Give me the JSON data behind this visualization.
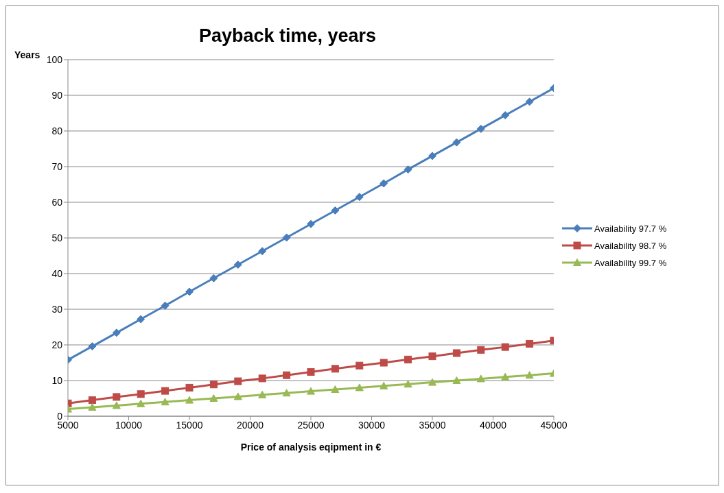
{
  "chart_data": {
    "type": "line",
    "title": "Payback time, years",
    "xlabel": "Price of analysis  eqipment in €",
    "ylabel": "Years",
    "x": [
      5000,
      7000,
      9000,
      11000,
      13000,
      15000,
      17000,
      19000,
      21000,
      23000,
      25000,
      27000,
      29000,
      31000,
      33000,
      35000,
      37000,
      39000,
      41000,
      43000,
      45000
    ],
    "series": [
      {
        "name": "Availability 97.7 %",
        "color": "#4a7ebb",
        "marker": "diamond",
        "values": [
          15.8,
          19.6,
          23.4,
          27.2,
          31.0,
          34.9,
          38.7,
          42.5,
          46.3,
          50.1,
          53.9,
          57.7,
          61.5,
          65.3,
          69.2,
          73.0,
          76.8,
          80.6,
          84.4,
          88.2,
          92.0
        ]
      },
      {
        "name": "Availability 98.7 %",
        "color": "#be4b48",
        "marker": "square",
        "values": [
          3.6,
          4.5,
          5.4,
          6.2,
          7.1,
          8.0,
          8.9,
          9.8,
          10.6,
          11.5,
          12.4,
          13.3,
          14.2,
          15.0,
          15.9,
          16.8,
          17.7,
          18.6,
          19.4,
          20.3,
          21.2
        ]
      },
      {
        "name": "Availability 99.7 %",
        "color": "#98b954",
        "marker": "triangle",
        "values": [
          2.0,
          2.5,
          3.0,
          3.5,
          4.0,
          4.5,
          5.0,
          5.5,
          6.0,
          6.5,
          7.0,
          7.5,
          8.0,
          8.5,
          9.0,
          9.5,
          10.0,
          10.5,
          11.0,
          11.5,
          12.0
        ]
      }
    ],
    "xlim": [
      5000,
      45000
    ],
    "xticks": [
      5000,
      10000,
      15000,
      20000,
      25000,
      30000,
      35000,
      40000,
      45000
    ],
    "ylim": [
      0,
      100
    ],
    "yticks": [
      0,
      10,
      20,
      30,
      40,
      50,
      60,
      70,
      80,
      90,
      100
    ],
    "grid": "y",
    "legend": "right",
    "line_style": "solid"
  }
}
